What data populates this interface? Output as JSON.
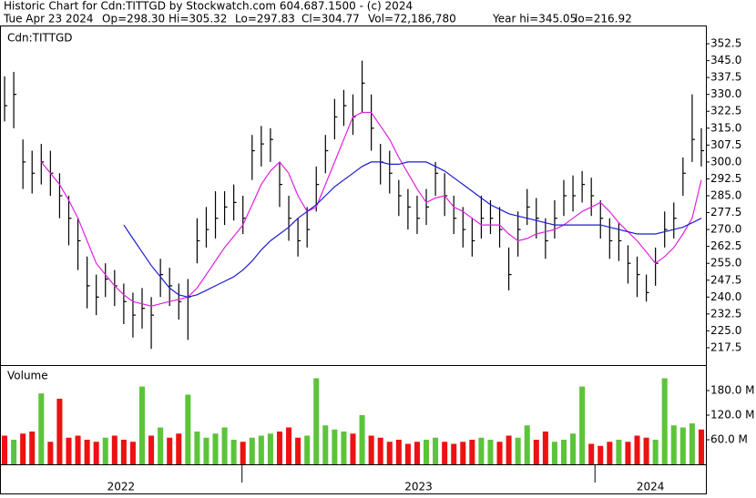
{
  "chart_data": {
    "type": "ohlc",
    "title": "Historic Chart for Cdn:TITTGD by Stockwatch.com 604.687.1500 - (c) 2024",
    "quote": [
      "Tue Apr 23 2024",
      "Op=298.30",
      "Hi=305.32",
      "Lo=297.83",
      "Cl=304.77",
      "Vol=72,186,780",
      "Year hi=345.05",
      "lo=216.92"
    ],
    "symbol": "Cdn:TITTGD",
    "volume_label": "Volume",
    "high": [
      338,
      340,
      310,
      305,
      308,
      305,
      295,
      285,
      275,
      258,
      250,
      255,
      252,
      246,
      242,
      244,
      240,
      257,
      253,
      246,
      248,
      275,
      280,
      287,
      287,
      290,
      285,
      312,
      316,
      315,
      300,
      285,
      275,
      280,
      298,
      312,
      328,
      332,
      330,
      345,
      330,
      308,
      305,
      292,
      288,
      285,
      288,
      300,
      295,
      285,
      280,
      275,
      285,
      283,
      280,
      262,
      278,
      288,
      284,
      275,
      283,
      292,
      294,
      296,
      293,
      283,
      275,
      273,
      263,
      258,
      250,
      262,
      278,
      282,
      302,
      330,
      315
    ],
    "low": [
      318,
      315,
      288,
      286,
      290,
      285,
      275,
      263,
      252,
      235,
      232,
      240,
      236,
      228,
      222,
      226,
      217,
      240,
      236,
      230,
      221,
      255,
      262,
      266,
      272,
      274,
      268,
      292,
      298,
      300,
      280,
      265,
      258,
      262,
      278,
      295,
      310,
      316,
      312,
      322,
      305,
      290,
      286,
      276,
      270,
      268,
      272,
      285,
      276,
      268,
      262,
      258,
      266,
      268,
      262,
      243,
      258,
      272,
      266,
      257,
      266,
      276,
      278,
      282,
      276,
      266,
      257,
      256,
      246,
      240,
      238,
      245,
      262,
      266,
      285,
      300,
      298
    ],
    "close": [
      325,
      330,
      300,
      295,
      300,
      295,
      285,
      275,
      265,
      245,
      240,
      248,
      245,
      238,
      232,
      235,
      232,
      250,
      245,
      238,
      240,
      265,
      270,
      275,
      280,
      282,
      275,
      305,
      308,
      310,
      290,
      275,
      265,
      270,
      290,
      305,
      320,
      325,
      320,
      335,
      315,
      300,
      295,
      285,
      280,
      275,
      280,
      295,
      285,
      275,
      270,
      265,
      275,
      275,
      270,
      250,
      270,
      280,
      275,
      265,
      275,
      285,
      285,
      290,
      285,
      275,
      265,
      265,
      255,
      250,
      242,
      255,
      270,
      275,
      295,
      310,
      305
    ],
    "volume": [
      70,
      60,
      75,
      80,
      173,
      55,
      160,
      65,
      70,
      60,
      55,
      65,
      70,
      60,
      55,
      190,
      70,
      90,
      65,
      75,
      170,
      80,
      65,
      75,
      90,
      60,
      55,
      65,
      70,
      75,
      80,
      90,
      65,
      70,
      210,
      95,
      85,
      80,
      75,
      120,
      70,
      65,
      55,
      60,
      50,
      55,
      60,
      65,
      55,
      50,
      55,
      60,
      65,
      60,
      55,
      70,
      65,
      95,
      60,
      80,
      55,
      60,
      75,
      190,
      50,
      45,
      55,
      60,
      55,
      70,
      65,
      60,
      210,
      95,
      90,
      100,
      85
    ],
    "moving_averages": [
      {
        "color": "#e020e0",
        "values": [
          null,
          null,
          null,
          null,
          300,
          295,
          290,
          283,
          275,
          265,
          255,
          250,
          245,
          241,
          238,
          237,
          236,
          237,
          238,
          239,
          240,
          244,
          250,
          256,
          262,
          267,
          272,
          281,
          290,
          296,
          300,
          295,
          285,
          278,
          280,
          290,
          300,
          310,
          320,
          322,
          322,
          316,
          310,
          302,
          295,
          288,
          282,
          284,
          285,
          280,
          278,
          275,
          272,
          272,
          272,
          268,
          265,
          266,
          268,
          269,
          270,
          272,
          275,
          278,
          280,
          282,
          278,
          273,
          269,
          265,
          260,
          255,
          258,
          262,
          268,
          275,
          292
        ]
      },
      {
        "color": "#1c1cd0",
        "values": [
          null,
          null,
          null,
          null,
          null,
          null,
          null,
          null,
          null,
          null,
          null,
          null,
          null,
          272,
          266,
          260,
          254,
          249,
          244,
          241,
          240,
          241,
          243,
          245,
          247,
          249,
          252,
          256,
          261,
          265,
          268,
          271,
          275,
          278,
          281,
          285,
          289,
          292,
          295,
          298,
          300,
          300,
          299,
          299,
          300,
          300,
          300,
          298,
          296,
          293,
          290,
          287,
          284,
          281,
          279,
          277,
          276,
          275,
          274,
          273,
          272,
          272,
          272,
          272,
          272,
          272,
          271,
          270,
          269,
          268,
          268,
          268,
          269,
          270,
          271,
          273,
          275
        ]
      }
    ],
    "bar_color": "#000000",
    "up_color": "#5cc43a",
    "down_color": "#ee1111",
    "ylim": [
      209.8,
      360.6
    ],
    "yticks": [
      352.5,
      {
        "value": 345,
        "label": "345.0"
      },
      337.5,
      {
        "value": 330,
        "label": "330.0"
      },
      322.5,
      {
        "value": 315,
        "label": "315.0"
      },
      307.5,
      {
        "value": 300,
        "label": "300.0"
      },
      292.5,
      {
        "value": 285,
        "label": "285.0"
      },
      277.5,
      {
        "value": 270,
        "label": "270.0"
      },
      262.5,
      {
        "value": 255,
        "label": "255.0"
      },
      247.5,
      {
        "value": 240,
        "label": "240.0"
      },
      232.5,
      {
        "value": 225,
        "label": "225.0"
      },
      217.5
    ],
    "vlim": [
      0,
      240
    ],
    "vticks": [
      {
        "value": 180,
        "label": "180.0 M"
      },
      {
        "value": 120,
        "label": "120.0 M"
      },
      {
        "value": 60,
        "label": "60.0 M"
      }
    ],
    "year_dividers": [
      25.9,
      64.4
    ],
    "years": [
      "2022",
      "2023",
      "2024"
    ]
  }
}
